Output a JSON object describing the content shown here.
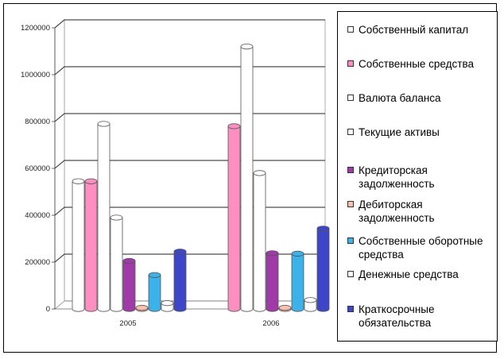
{
  "chart_data": {
    "type": "bar",
    "categories": [
      "2005",
      "2006"
    ],
    "ylim": [
      0,
      1200000
    ],
    "yticks": [
      0,
      200000,
      400000,
      600000,
      800000,
      1000000,
      1200000
    ],
    "grid": true,
    "legend_position": "right",
    "series": [
      {
        "name": "Собственный капитал",
        "color": "#ffffff",
        "values": [
          545000,
          0
        ]
      },
      {
        "name": "Собственные средства",
        "color": "#ff8fc0",
        "values": [
          545000,
          780000
        ]
      },
      {
        "name": "Валюта баланса",
        "color": "#ffffff",
        "values": [
          790000,
          1120000
        ]
      },
      {
        "name": "Текущие активы",
        "color": "#ffffff",
        "values": [
          390000,
          580000
        ]
      },
      {
        "name": "Кредиторская задолженность",
        "color": "#a03aa8",
        "values": [
          205000,
          238000
        ]
      },
      {
        "name": "Дебиторская задолженность",
        "color": "#ffc0b0",
        "values": [
          5000,
          5000
        ]
      },
      {
        "name": "Собственные оборотные средства",
        "color": "#3bb3ea",
        "values": [
          145000,
          236000
        ]
      },
      {
        "name": "Денежные средства",
        "color": "#ffffff",
        "values": [
          25000,
          38000
        ]
      },
      {
        "name": "Краткосрочные обязательства",
        "color": "#3d45c8",
        "values": [
          245000,
          343000
        ]
      }
    ]
  }
}
